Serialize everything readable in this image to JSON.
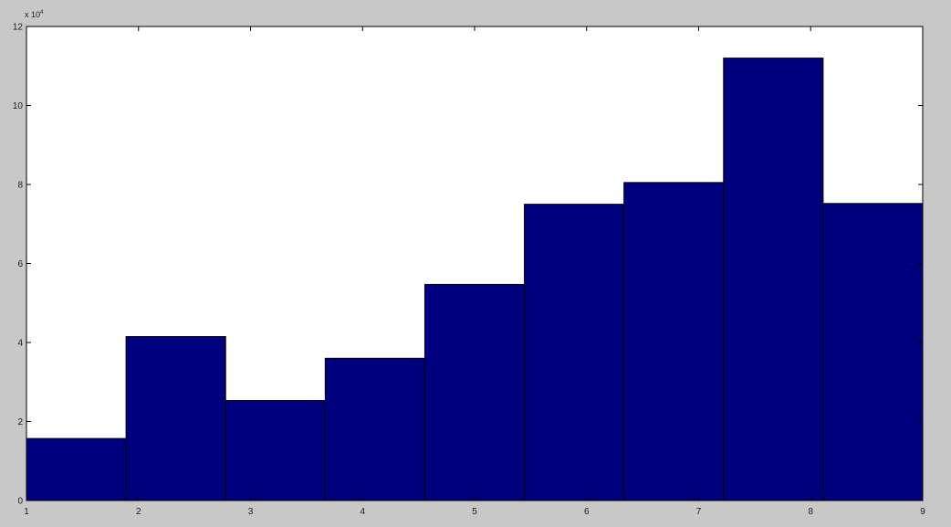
{
  "chart_data": {
    "type": "bar",
    "bins": [
      {
        "x0": 1.0,
        "x1": 1.8889,
        "value": 15700
      },
      {
        "x0": 1.8889,
        "x1": 2.7778,
        "value": 41500
      },
      {
        "x0": 2.7778,
        "x1": 3.6667,
        "value": 25300
      },
      {
        "x0": 3.6667,
        "x1": 4.5556,
        "value": 36000
      },
      {
        "x0": 4.5556,
        "x1": 5.4444,
        "value": 54700
      },
      {
        "x0": 5.4444,
        "x1": 6.3333,
        "value": 75000
      },
      {
        "x0": 6.3333,
        "x1": 7.2222,
        "value": 80500
      },
      {
        "x0": 7.2222,
        "x1": 8.1111,
        "value": 112000
      },
      {
        "x0": 8.1111,
        "x1": 9.0,
        "value": 75200
      }
    ],
    "x_ticks": [
      "1",
      "2",
      "3",
      "4",
      "5",
      "6",
      "7",
      "8",
      "9"
    ],
    "y_ticks": [
      "0",
      "2",
      "4",
      "6",
      "8",
      "10",
      "12"
    ],
    "y_tick_values": [
      0,
      20000,
      40000,
      60000,
      80000,
      100000,
      120000
    ],
    "y_exponent_label": "x 10",
    "y_exponent_power": "4",
    "xlim": [
      1,
      9
    ],
    "ylim": [
      0,
      120000
    ],
    "bar_color": "#00007f",
    "edge_color": "#000000",
    "grid": false
  }
}
